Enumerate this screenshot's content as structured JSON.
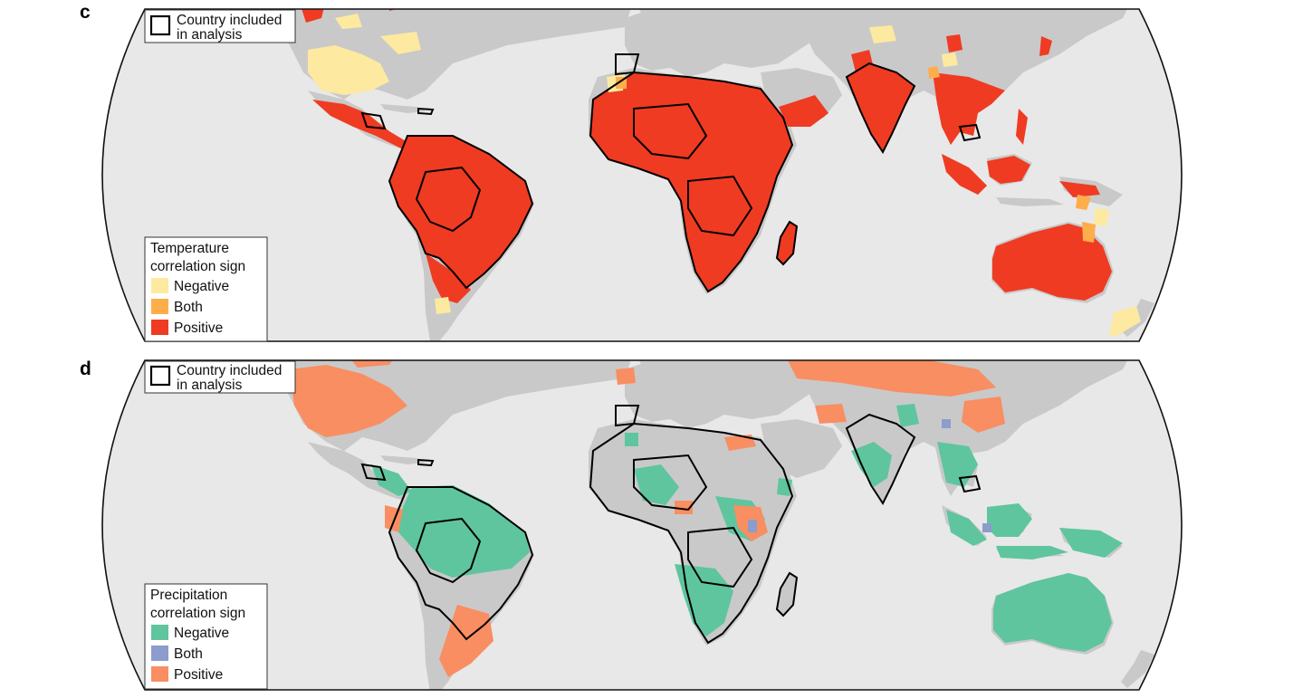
{
  "panels": [
    {
      "letter": "c",
      "country_legend": {
        "line1": "Country included",
        "line2": "in analysis"
      },
      "legend": {
        "title_line1": "Temperature",
        "title_line2": "correlation sign",
        "entries": [
          {
            "label": "Negative",
            "color": "#fde9a0"
          },
          {
            "label": "Both",
            "color": "#fdae4b"
          },
          {
            "label": "Positive",
            "color": "#ef3b22"
          }
        ]
      }
    },
    {
      "letter": "d",
      "country_legend": {
        "line1": "Country included",
        "line2": "in analysis"
      },
      "legend": {
        "title_line1": "Precipitation",
        "title_line2": "correlation sign",
        "entries": [
          {
            "label": "Negative",
            "color": "#5fc59f"
          },
          {
            "label": "Both",
            "color": "#8c9ccc"
          },
          {
            "label": "Positive",
            "color": "#f88e62"
          }
        ]
      }
    }
  ],
  "colors": {
    "ocean": "#e8e8e8",
    "land": "#c9c9c9",
    "border": "#000000",
    "frame": "#111111"
  }
}
